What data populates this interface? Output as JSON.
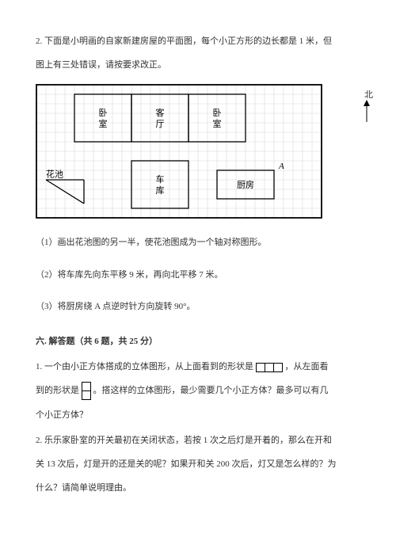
{
  "q2": {
    "intro_l1": "2. 下面是小明画的自家新建房屋的平面图，每个小正方形的边长都是 1 米，但",
    "intro_l2": "图上有三处错误，请按要求改正。",
    "north": "北",
    "rooms": {
      "bedroom1": "卧\n室",
      "living": "客\n厅",
      "bedroom2": "卧\n室",
      "garage": "车\n库",
      "kitchen": "厨房",
      "pond": "花池"
    },
    "pointA": "A",
    "s1": "（1）画出花池图的另一半，使花池图成为一个轴对称图形。",
    "s2": "（2）将车库先向东平移 9 米，再向北平移 7 米。",
    "s3": "（3）将厨房绕 A 点逆时针方向旋转 90°。"
  },
  "sec6": {
    "title": "六. 解答题（共 6 题，共 25 分）",
    "q1_a": "1. 一个由小正方体搭成的立体图形，从上面看到的形状是",
    "q1_b": "，从左面看",
    "q1_c": "到的形状是",
    "q1_d": "。搭这样的立体图形，最少需要几个小正方体？最多可以有几",
    "q1_e": "个小正方体？",
    "q2_a": "2. 乐乐家卧室的开关最初在关闭状态，若按 1 次之后灯是开着的，那么在开和",
    "q2_b": "关 13 次后，灯是开的还是关的呢？如果开和关 200 次后，灯又是怎么样的？为",
    "q2_c": "什么？请简单说明理由。"
  },
  "style": {
    "grid_color": "#d8d8d8",
    "border_color": "#000000",
    "cell": 12,
    "cols": 30,
    "rows": 14
  }
}
